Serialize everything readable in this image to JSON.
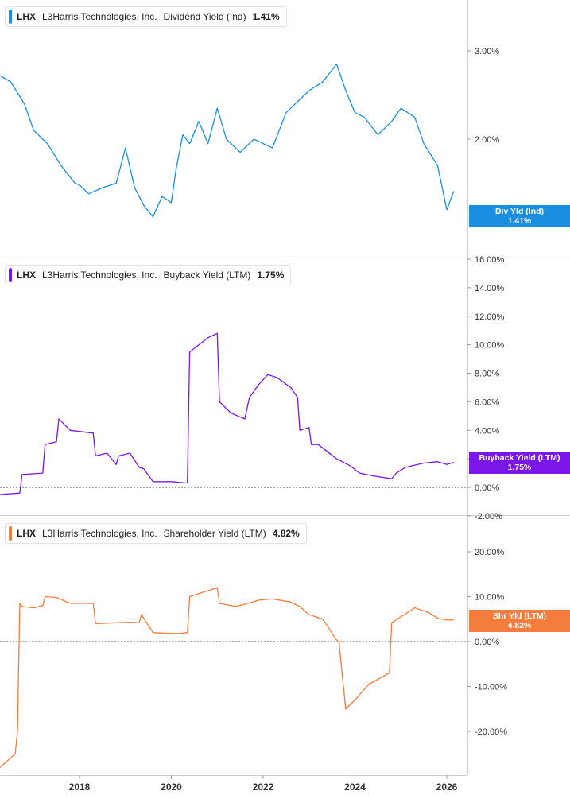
{
  "chart_data": [
    {
      "type": "line",
      "ticker": "LHX",
      "company": "L3Harris Technologies, Inc.",
      "metric": "Dividend Yield (Ind)",
      "last_value": "1.41%",
      "tag_label": "Div Yld (Ind)",
      "color": "#1a8fe0",
      "y_unit": "%",
      "ylim": [
        0.6,
        3.5
      ],
      "yticks": [
        2.0,
        3.0
      ],
      "ytick_labels": [
        "2.00%",
        "3.00%"
      ],
      "series": [
        {
          "x": [
            2016.2,
            2016.5,
            2016.8,
            2017.0,
            2017.3,
            2017.6,
            2017.9,
            2018.0,
            2018.2,
            2018.5,
            2018.8,
            2019.0,
            2019.2,
            2019.4,
            2019.6,
            2019.8,
            2020.0,
            2020.1,
            2020.25,
            2020.4,
            2020.6,
            2020.8,
            2021.0,
            2021.2,
            2021.5,
            2021.8,
            2022.0,
            2022.2,
            2022.5,
            2022.8,
            2023.0,
            2023.3,
            2023.6,
            2023.8,
            2024.0,
            2024.2,
            2024.5,
            2024.8,
            2025.0,
            2025.3,
            2025.5,
            2025.8,
            2026.0,
            2026.15
          ],
          "y": [
            2.72,
            2.65,
            2.4,
            2.1,
            1.95,
            1.7,
            1.5,
            1.48,
            1.38,
            1.45,
            1.5,
            1.9,
            1.45,
            1.25,
            1.12,
            1.35,
            1.28,
            1.65,
            2.05,
            1.95,
            2.2,
            1.95,
            2.35,
            2.0,
            1.85,
            2.0,
            1.95,
            1.9,
            2.3,
            2.45,
            2.55,
            2.65,
            2.85,
            2.55,
            2.3,
            2.25,
            2.05,
            2.2,
            2.35,
            2.25,
            1.95,
            1.7,
            1.2,
            1.41
          ]
        }
      ]
    },
    {
      "type": "line",
      "ticker": "LHX",
      "company": "L3Harris Technologies, Inc.",
      "metric": "Buyback Yield (LTM)",
      "last_value": "1.75%",
      "tag_label": "Buyback Yield (LTM)",
      "color": "#7b16e8",
      "y_unit": "%",
      "ylim": [
        -2.0,
        16.0
      ],
      "yticks": [
        -2,
        0,
        2,
        4,
        6,
        8,
        10,
        12,
        14,
        16
      ],
      "ytick_labels": [
        "-2.00%",
        "0.00%",
        "2.00%",
        "4.00%",
        "6.00%",
        "8.00%",
        "10.00%",
        "12.00%",
        "14.00%",
        "16.00%"
      ],
      "series": [
        {
          "x": [
            2016.2,
            2016.7,
            2016.75,
            2017.2,
            2017.25,
            2017.5,
            2017.55,
            2017.8,
            2018.3,
            2018.35,
            2018.6,
            2018.8,
            2018.85,
            2019.1,
            2019.3,
            2019.4,
            2019.6,
            2020.0,
            2020.35,
            2020.4,
            2020.6,
            2020.8,
            2021.0,
            2021.05,
            2021.3,
            2021.6,
            2021.7,
            2021.9,
            2022.1,
            2022.3,
            2022.6,
            2022.75,
            2022.8,
            2023.0,
            2023.05,
            2023.2,
            2023.4,
            2023.6,
            2023.9,
            2024.1,
            2024.4,
            2024.8,
            2024.9,
            2025.1,
            2025.5,
            2025.8,
            2026.0,
            2026.15
          ],
          "y": [
            -0.5,
            -0.4,
            0.9,
            1.0,
            3.0,
            3.2,
            4.8,
            4.0,
            3.8,
            2.2,
            2.4,
            1.6,
            2.2,
            2.4,
            1.4,
            1.3,
            0.4,
            0.4,
            0.3,
            9.5,
            10.0,
            10.5,
            10.8,
            6.0,
            5.2,
            4.8,
            6.3,
            7.2,
            7.9,
            7.7,
            7.0,
            6.3,
            4.0,
            4.2,
            3.0,
            3.0,
            2.5,
            2.0,
            1.5,
            1.0,
            0.8,
            0.6,
            1.0,
            1.4,
            1.7,
            1.8,
            1.6,
            1.75
          ]
        }
      ]
    },
    {
      "type": "line",
      "ticker": "LHX",
      "company": "L3Harris Technologies, Inc.",
      "metric": "Shareholder Yield (LTM)",
      "last_value": "4.82%",
      "tag_label": "Shr Yld (LTM)",
      "color": "#f47c3c",
      "y_unit": "%",
      "ylim": [
        -28.0,
        24.0
      ],
      "yticks": [
        -20,
        -10,
        0,
        10,
        20
      ],
      "ytick_labels": [
        "-20.00%",
        "-10.00%",
        "0.00%",
        "10.00%",
        "20.00%"
      ],
      "series": [
        {
          "x": [
            2016.2,
            2016.6,
            2016.65,
            2016.7,
            2016.75,
            2017.0,
            2017.2,
            2017.25,
            2017.5,
            2017.8,
            2018.3,
            2018.35,
            2018.8,
            2019.1,
            2019.3,
            2019.35,
            2019.6,
            2020.0,
            2020.2,
            2020.35,
            2020.4,
            2020.7,
            2021.0,
            2021.05,
            2021.4,
            2021.7,
            2021.9,
            2022.2,
            2022.6,
            2022.8,
            2023.0,
            2023.3,
            2023.6,
            2023.65,
            2023.8,
            2024.0,
            2024.3,
            2024.75,
            2024.8,
            2025.0,
            2025.3,
            2025.6,
            2025.8,
            2026.0,
            2026.15
          ],
          "y": [
            -28.0,
            -25.0,
            -20.0,
            8.5,
            7.8,
            7.5,
            8.0,
            10.0,
            9.8,
            8.5,
            8.5,
            4.0,
            4.2,
            4.3,
            4.2,
            6.0,
            2.0,
            1.8,
            1.8,
            2.0,
            10.0,
            11.0,
            12.0,
            8.5,
            7.8,
            8.6,
            9.2,
            9.5,
            8.8,
            7.8,
            6.0,
            5.0,
            0.3,
            0.0,
            -15.0,
            -13.0,
            -9.5,
            -7.0,
            4.2,
            5.5,
            7.5,
            6.5,
            5.2,
            4.8,
            4.82
          ]
        }
      ]
    }
  ],
  "x_axis": {
    "ticks": [
      2018,
      2020,
      2022,
      2024,
      2026
    ],
    "tick_labels": [
      "2018",
      "2020",
      "2022",
      "2024",
      "2026"
    ],
    "range": [
      2016.2,
      2026.5
    ]
  }
}
